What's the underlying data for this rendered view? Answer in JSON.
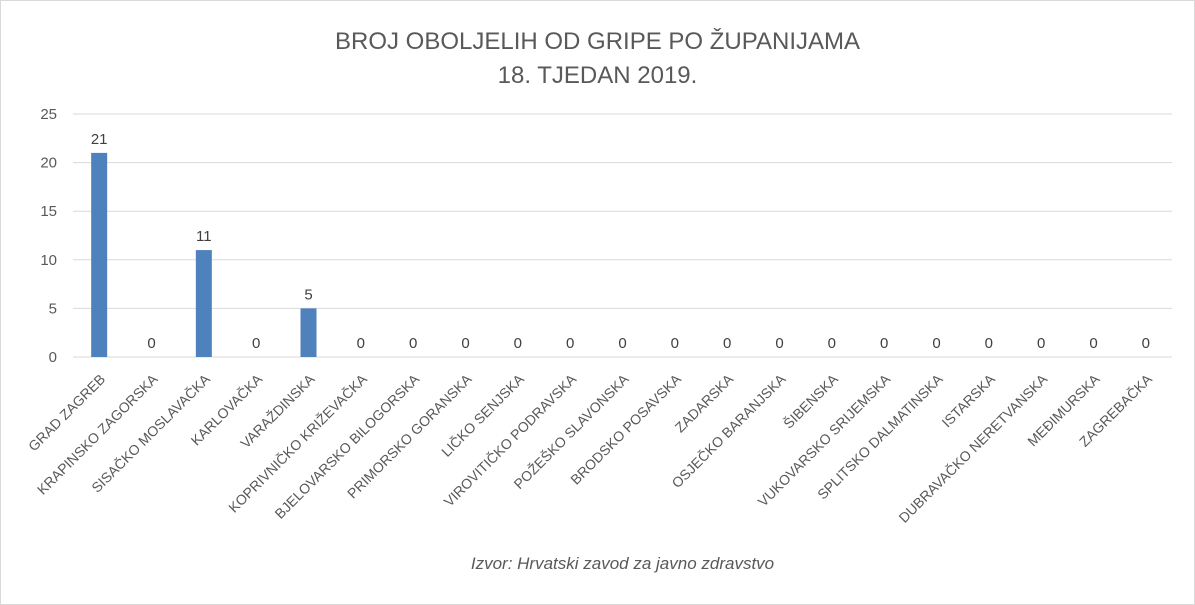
{
  "chart_data": {
    "type": "bar",
    "title": "BROJ OBOLJELIH OD GRIPE PO ŽUPANIJAMA",
    "subtitle": "18. TJEDAN 2019.",
    "source": "Izvor: Hrvatski zavod za javno zdravstvo",
    "categories": [
      "GRAD ZAGREB",
      "KRAPINSKO ZAGORSKA",
      "SISAČKO MOSLAVAČKA",
      "KARLOVAČKA",
      "VARAŽDINSKA",
      "KOPRIVNIČKO KRIŽEVAČKA",
      "BJELOVARSKO BILOGORSKA",
      "PRIMORSKO GORANSKA",
      "LIČKO SENJSKA",
      "VIROVITIČKO PODRAVSKA",
      "POŽEŠKO SLAVONSKA",
      "BRODSKO POSAVSKA",
      "ZADARSKA",
      "OSJEČKO BARANJSKA",
      "ŠIBENSKA",
      "VUKOVARSKO SRIJEMSKA",
      "SPLITSKO DALMATINSKA",
      "ISTARSKA",
      "DUBRAVAČKO NERETVANSKA",
      "MEĐIMURSKA",
      "ZAGREBAČKA"
    ],
    "values": [
      21,
      0,
      11,
      0,
      5,
      0,
      0,
      0,
      0,
      0,
      0,
      0,
      0,
      0,
      0,
      0,
      0,
      0,
      0,
      0,
      0
    ],
    "ylim": [
      0,
      25
    ],
    "yticks": [
      0,
      5,
      10,
      15,
      20,
      25
    ],
    "grid": true,
    "data_labels": true,
    "bar_color": "#4f81bd"
  }
}
